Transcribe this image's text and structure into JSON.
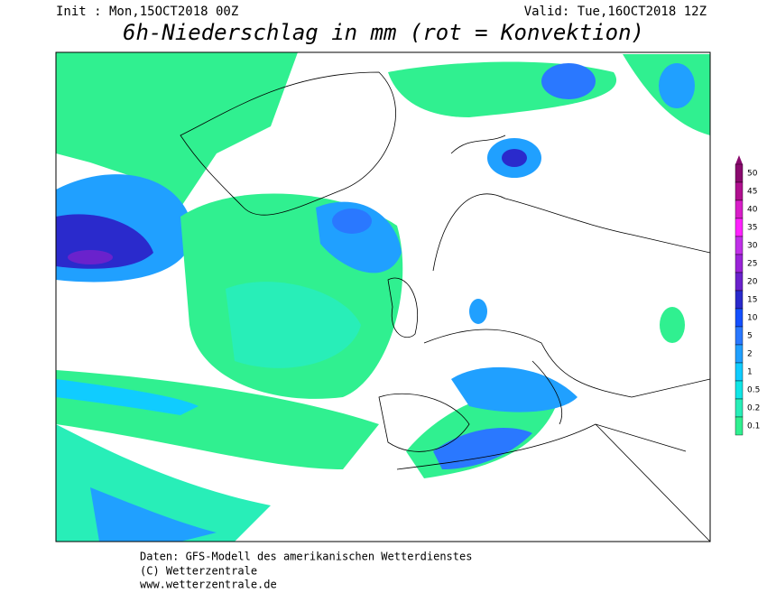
{
  "header": {
    "init": "Init : Mon,15OCT2018 00Z",
    "valid": "Valid: Tue,16OCT2018 12Z",
    "title": "6h-Niederschlag in mm (rot = Konvektion)"
  },
  "legend": [
    {
      "label": "50",
      "color": "#8a0a6e"
    },
    {
      "label": "45",
      "color": "#b0108f"
    },
    {
      "label": "40",
      "color": "#d81ec8"
    },
    {
      "label": "35",
      "color": "#ff22ff"
    },
    {
      "label": "30",
      "color": "#c030e8"
    },
    {
      "label": "25",
      "color": "#9a24d8"
    },
    {
      "label": "20",
      "color": "#6a22cc"
    },
    {
      "label": "15",
      "color": "#2a2acc"
    },
    {
      "label": "10",
      "color": "#1450ff"
    },
    {
      "label": "5",
      "color": "#2a78ff"
    },
    {
      "label": "2",
      "color": "#20a0ff"
    },
    {
      "label": "1",
      "color": "#10ccff"
    },
    {
      "label": "0.5",
      "color": "#10e6e6"
    },
    {
      "label": "0.2",
      "color": "#28eeb8"
    },
    {
      "label": "0.1",
      "color": "#30f090"
    }
  ],
  "footer": {
    "line1": "Daten: GFS-Modell des amerikanischen Wetterdienstes",
    "line2": "(C) Wetterzentrale",
    "line3": "www.wetterzentrale.de"
  }
}
